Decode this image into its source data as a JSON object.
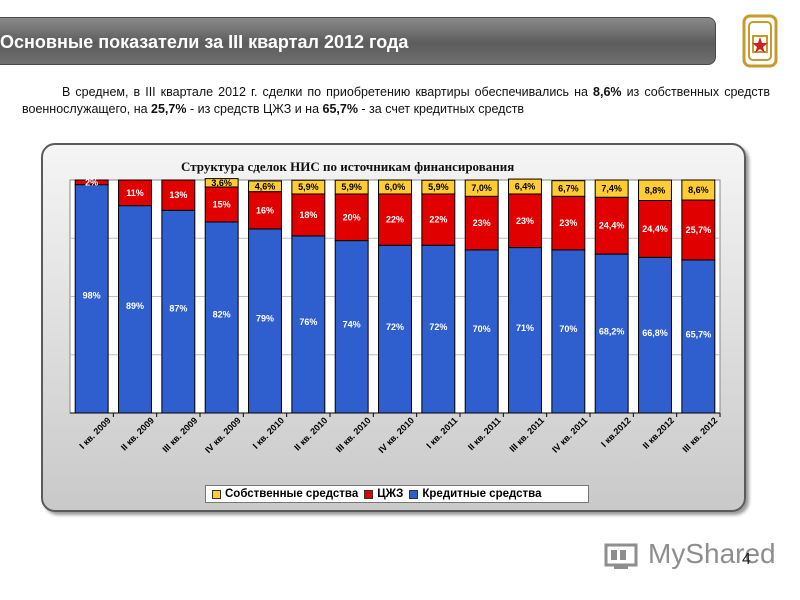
{
  "slide": {
    "title": "Основные показатели за III квартал 2012 года",
    "intro_parts": [
      "В среднем, в III квартале 2012 г. сделки по приобретению квартиры обеспечивались на ",
      "8,6%",
      " из собственных средств военнослужащего, на ",
      "25,7%",
      " - из средств ЦЖЗ и на ",
      "65,7%",
      " - за счет кредитных средств"
    ],
    "page_number": "4",
    "watermark": "MyShared"
  },
  "colors": {
    "own": "#FFCC33",
    "czhz": "#E00000",
    "credit": "#2F5ECF",
    "title_bar": "#6f6f6f"
  },
  "icons": [
    "emblem-icon",
    "myshared-logo-icon"
  ],
  "chart_data": {
    "type": "bar",
    "stacked": true,
    "title": "Структура сделок НИС по источникам финансирования",
    "categories": [
      "I кв. 2009",
      "II кв. 2009",
      "III кв. 2009",
      "IV кв. 2009",
      "I кв. 2010",
      "II кв. 2010",
      "III кв. 2010",
      "IV кв. 2010",
      "I кв. 2011",
      "II кв. 2011",
      "III кв. 2011",
      "IV кв. 2011",
      "I кв.2012",
      "II кв.2012",
      "III кв. 2012"
    ],
    "series": [
      {
        "name": "Кредитные средства",
        "color": "#2F5ECF",
        "values": [
          98,
          89,
          87,
          82,
          79,
          76,
          74,
          72,
          72,
          70,
          71,
          70,
          68.2,
          66.8,
          65.7
        ],
        "labels": [
          "98%",
          "89%",
          "87%",
          "82%",
          "79%",
          "76%",
          "74%",
          "72%",
          "72%",
          "70%",
          "71%",
          "70%",
          "68,2%",
          "66,8%",
          "65,7%"
        ]
      },
      {
        "name": "ЦЖЗ",
        "color": "#E00000",
        "values": [
          2,
          11,
          13,
          15,
          16,
          18,
          20,
          22,
          22,
          23,
          23,
          23,
          24.4,
          24.4,
          25.7
        ],
        "labels": [
          "2%",
          "11%",
          "13%",
          "15%",
          "16%",
          "18%",
          "20%",
          "22%",
          "22%",
          "23%",
          "23%",
          "23%",
          "24,4%",
          "24,4%",
          "25,7%"
        ]
      },
      {
        "name": "Собственные средства",
        "color": "#FFCC33",
        "values": [
          0,
          0,
          0,
          3.6,
          4.6,
          5.9,
          5.9,
          6.0,
          5.9,
          7.0,
          6.4,
          6.7,
          7.4,
          8.8,
          8.6
        ],
        "labels": [
          "",
          "",
          "",
          "3,6%",
          "4,6%",
          "5,9%",
          "5,9%",
          "6,0%",
          "5,9%",
          "7,0%",
          "6,4%",
          "6,7%",
          "7,4%",
          "8,8%",
          "8,6%"
        ]
      }
    ],
    "legend_order": [
      "Собственные средства",
      "ЦЖЗ",
      "Кредитные средства"
    ],
    "legend_position": "bottom",
    "ylim": [
      0,
      100
    ],
    "grid": true
  }
}
